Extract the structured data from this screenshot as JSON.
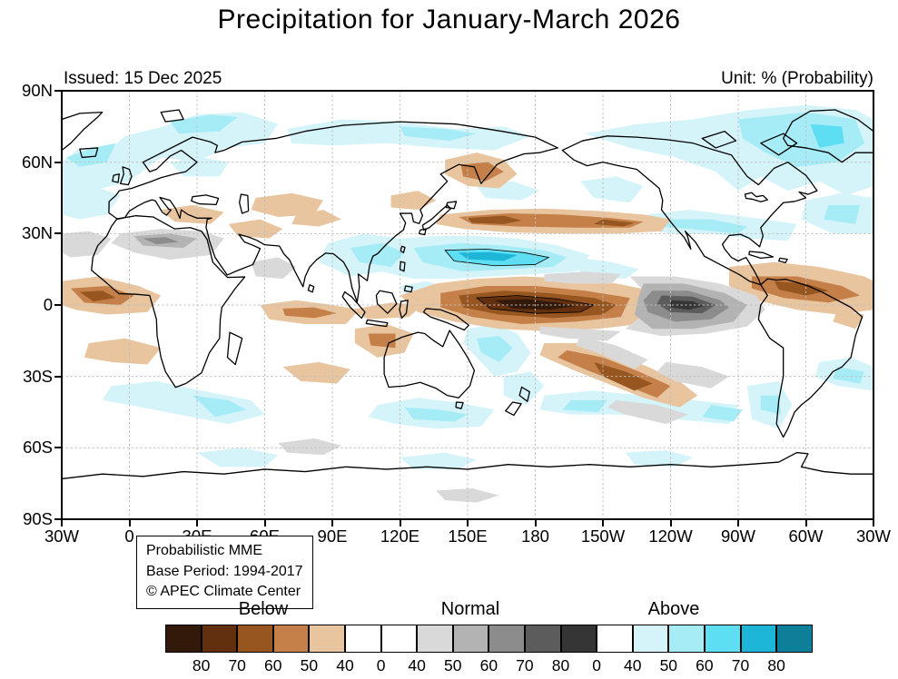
{
  "title": "Precipitation for January-March 2026",
  "header": {
    "issued": "Issued: 15 Dec 2025",
    "unit": "Unit: % (Probability)"
  },
  "map": {
    "y_ticks": [
      "90N",
      "60N",
      "30N",
      "0",
      "30S",
      "60S",
      "90S"
    ],
    "x_ticks": [
      "30W",
      "0",
      "30E",
      "60E",
      "90E",
      "120E",
      "150E",
      "180",
      "150W",
      "120W",
      "90W",
      "60W",
      "30W"
    ],
    "info_box": {
      "line1": "Probabilistic MME",
      "line2": "Base Period: 1994-2017",
      "line3": "© APEC Climate Center"
    }
  },
  "legend": {
    "group_labels": [
      "Below",
      "Normal",
      "Above"
    ],
    "cells": [
      "below80",
      "below70",
      "below60",
      "below50",
      "below40",
      "white",
      "white",
      "normal40",
      "normal50",
      "normal60",
      "normal70",
      "normal80",
      "white",
      "above40",
      "above50",
      "above60",
      "above70",
      "above80"
    ],
    "tick_labels": [
      "80",
      "70",
      "60",
      "50",
      "40",
      "0",
      "40",
      "50",
      "60",
      "70",
      "80",
      "0",
      "40",
      "50",
      "60",
      "70",
      "80"
    ]
  },
  "palette": {
    "below80": "#33190a",
    "below70": "#63300f",
    "below60": "#97561f",
    "below50": "#c58049",
    "below40": "#e8c59e",
    "normal40": "#d9d9d9",
    "normal50": "#b3b3b3",
    "normal60": "#8c8c8c",
    "normal70": "#5c5c5c",
    "normal80": "#353535",
    "above40": "#d4f4fa",
    "above50": "#a6ecf6",
    "above60": "#5edef2",
    "above70": "#1db6d8",
    "above80": "#0d7f99",
    "white": "#ffffff"
  },
  "chart_data": {
    "type": "heatmap",
    "title": "Precipitation for January-March 2026",
    "unit": "% (Probability)",
    "issued": "15 Dec 2025",
    "source": "Probabilistic MME, Base Period: 1994-2017, APEC Climate Center",
    "projection": "Global map, longitude from 30W eastward around to 30W (Pacific-centered), latitude 90S-90N",
    "x_ticks": [
      "30W",
      "0",
      "30E",
      "60E",
      "90E",
      "120E",
      "150E",
      "180",
      "150W",
      "120W",
      "90W",
      "60W",
      "30W"
    ],
    "y_ticks": [
      "90N",
      "60N",
      "30N",
      "0",
      "30S",
      "60S",
      "90S"
    ],
    "categories": [
      "Below",
      "Normal",
      "Above"
    ],
    "probability_scale_percent": [
      40,
      50,
      60,
      70,
      80
    ],
    "regions": [
      {
        "area": "Equatorial central Pacific (170E-150W, near 0-5S)",
        "category": "Below",
        "probability": "70->80"
      },
      {
        "area": "Equatorial east-central Pacific (150W-110W)",
        "category": "Normal",
        "probability": "50-80"
      },
      {
        "area": "Subtropical NW Pacific band (10N-25N, 130E-160W)",
        "category": "Above",
        "probability": "50-70"
      },
      {
        "area": "Bay of Bengal / Southeast Asia",
        "category": "Above",
        "probability": "40-60"
      },
      {
        "area": "North Pacific band near 35N",
        "category": "Below",
        "probability": "40-60"
      },
      {
        "area": "Sea of Okhotsk / Kamchatka region",
        "category": "Below",
        "probability": "40-50"
      },
      {
        "area": "Southern US / northern Mexico / subtropical N Atlantic",
        "category": "Above",
        "probability": "40-50"
      },
      {
        "area": "Caribbean, northern South America and tropical Atlantic",
        "category": "Below",
        "probability": "40-60"
      },
      {
        "area": "High northern latitudes (Arctic, NE Canada, Greenland, N Atlantic, Siberia)",
        "category": "Above",
        "probability": "40-60"
      },
      {
        "area": "Sahara / West Africa",
        "category": "Normal",
        "probability": "40-60"
      },
      {
        "area": "Tropical Indian Ocean 5S-15S and NW of Australia",
        "category": "Below",
        "probability": "40-50"
      },
      {
        "area": "South Pacific Convergence Zone (diagonal band toward 30S,120W)",
        "category": "Below",
        "probability": "40-60"
      },
      {
        "area": "Southern oceans 40S-55S (S Pacific, S Atlantic, S Indian, S of Australia)",
        "category": "Above",
        "probability": "40-50"
      },
      {
        "area": "Southeastern South America coast",
        "category": "Above",
        "probability": "40-50"
      }
    ]
  }
}
